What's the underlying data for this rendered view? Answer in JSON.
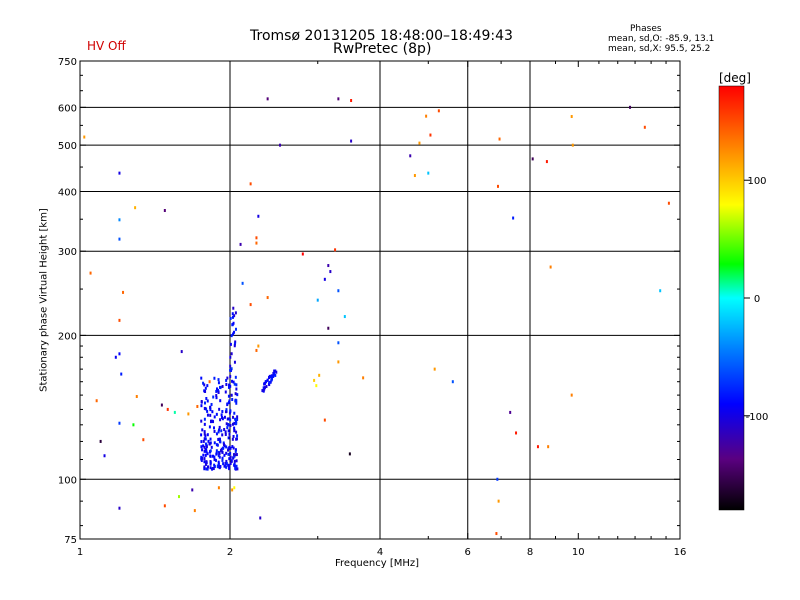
{
  "header": {
    "title_line1": "Tromsø 20131205 18:48:00–18:49:43",
    "title_line2": "RwPretec (8p)",
    "status": "HV Off",
    "stats_title": "Phases",
    "stats_o": "mean, sd,O: -85.9, 13.1",
    "stats_x": "mean, sd,X:  95.5, 25.2"
  },
  "colorbar": {
    "title": "[deg]",
    "ticks": [
      100,
      0,
      -100
    ],
    "range": [
      -180,
      180
    ]
  },
  "colors": {
    "axis": "#000000",
    "status": "#d00000"
  },
  "chart_data": {
    "type": "scatter",
    "xlabel": "Frequency [MHz]",
    "ylabel": "Stationary phase Virtual Height [km]",
    "xscale": "log",
    "yscale": "log",
    "xlim": [
      1,
      16
    ],
    "ylim": [
      75,
      750
    ],
    "xticks": [
      1,
      2,
      4,
      6,
      8,
      10,
      16
    ],
    "yticks": [
      75,
      100,
      200,
      300,
      400,
      500,
      600,
      750
    ],
    "xgrid": [
      2,
      4,
      6,
      8
    ],
    "ygrid": [
      100,
      200,
      300,
      400,
      500,
      600
    ],
    "grid": true,
    "color_variable": "phase [deg]",
    "points": [
      [
        1.18,
        180,
        -95
      ],
      [
        1.2,
        183,
        -90
      ],
      [
        1.21,
        166,
        -80
      ],
      [
        1.08,
        146,
        140
      ],
      [
        1.12,
        112,
        -100
      ],
      [
        1.2,
        131,
        -70
      ],
      [
        1.28,
        130,
        30
      ],
      [
        1.3,
        149,
        130
      ],
      [
        1.34,
        121,
        150
      ],
      [
        1.46,
        143,
        -150
      ],
      [
        1.5,
        140,
        160
      ],
      [
        1.55,
        138,
        10
      ],
      [
        1.6,
        185,
        -110
      ],
      [
        1.65,
        137,
        120
      ],
      [
        1.68,
        95,
        -120
      ],
      [
        1.72,
        142,
        140
      ],
      [
        1.82,
        160,
        140
      ],
      [
        1.2,
        87,
        -110
      ],
      [
        1.48,
        88,
        150
      ],
      [
        1.58,
        92,
        60
      ],
      [
        1.7,
        86,
        130
      ],
      [
        1.9,
        96,
        130
      ],
      [
        2.02,
        95,
        120
      ],
      [
        2.04,
        96,
        80
      ],
      [
        2.3,
        83,
        -110
      ],
      [
        1.05,
        270,
        140
      ],
      [
        1.1,
        120,
        -160
      ],
      [
        1.2,
        215,
        150
      ],
      [
        1.22,
        246,
        140
      ],
      [
        1.29,
        370,
        110
      ],
      [
        1.2,
        349,
        -40
      ],
      [
        1.2,
        318,
        -60
      ],
      [
        1.48,
        365,
        -140
      ],
      [
        1.2,
        437,
        -100
      ],
      [
        1.02,
        520,
        120
      ],
      [
        2.1,
        310,
        -120
      ],
      [
        2.28,
        355,
        -100
      ],
      [
        2.26,
        320,
        150
      ],
      [
        2.26,
        312,
        140
      ],
      [
        2.2,
        415,
        150
      ],
      [
        2.38,
        240,
        140
      ],
      [
        2.2,
        232,
        150
      ],
      [
        2.12,
        257,
        -60
      ],
      [
        2.28,
        190,
        120
      ],
      [
        2.26,
        186,
        140
      ],
      [
        2.8,
        296,
        190
      ],
      [
        2.38,
        625,
        -140
      ],
      [
        2.52,
        500,
        -120
      ],
      [
        3.0,
        237,
        -30
      ],
      [
        3.1,
        262,
        -100
      ],
      [
        3.15,
        280,
        -120
      ],
      [
        3.18,
        272,
        -110
      ],
      [
        3.3,
        248,
        -60
      ],
      [
        3.4,
        219,
        -20
      ],
      [
        3.15,
        207,
        -150
      ],
      [
        3.25,
        302,
        160
      ],
      [
        3.3,
        193,
        -60
      ],
      [
        3.02,
        165,
        110
      ],
      [
        2.95,
        161,
        100
      ],
      [
        2.98,
        157,
        80
      ],
      [
        3.1,
        133,
        150
      ],
      [
        3.3,
        176,
        120
      ],
      [
        3.48,
        113,
        -170
      ],
      [
        3.7,
        163,
        130
      ],
      [
        3.3,
        625,
        -140
      ],
      [
        3.5,
        620,
        170
      ],
      [
        3.5,
        510,
        -110
      ],
      [
        4.6,
        475,
        -120
      ],
      [
        4.8,
        505,
        120
      ],
      [
        4.95,
        575,
        130
      ],
      [
        5.05,
        525,
        160
      ],
      [
        4.7,
        432,
        120
      ],
      [
        5.0,
        437,
        -20
      ],
      [
        5.15,
        170,
        120
      ],
      [
        5.25,
        590,
        150
      ],
      [
        5.6,
        160,
        -60
      ],
      [
        6.9,
        410,
        150
      ],
      [
        6.95,
        515,
        140
      ],
      [
        7.4,
        352,
        -80
      ],
      [
        7.3,
        138,
        -130
      ],
      [
        7.5,
        125,
        170
      ],
      [
        6.88,
        100,
        -70
      ],
      [
        6.92,
        90,
        120
      ],
      [
        6.85,
        77,
        150
      ],
      [
        8.1,
        468,
        -150
      ],
      [
        8.65,
        462,
        170
      ],
      [
        8.8,
        278,
        130
      ],
      [
        8.3,
        117,
        170
      ],
      [
        8.7,
        117,
        130
      ],
      [
        9.7,
        574,
        120
      ],
      [
        9.75,
        500,
        120
      ],
      [
        9.7,
        150,
        130
      ],
      [
        12.7,
        600,
        -150
      ],
      [
        13.6,
        545,
        150
      ],
      [
        14.6,
        248,
        -20
      ],
      [
        15.2,
        378,
        150
      ]
    ],
    "cluster_o": {
      "description": "dense O-mode trace near 1.75-2.05 MHz, 105-165 km and diagonal trace 2.3-2.5 MHz, 155-170 km",
      "phase": -90
    }
  }
}
